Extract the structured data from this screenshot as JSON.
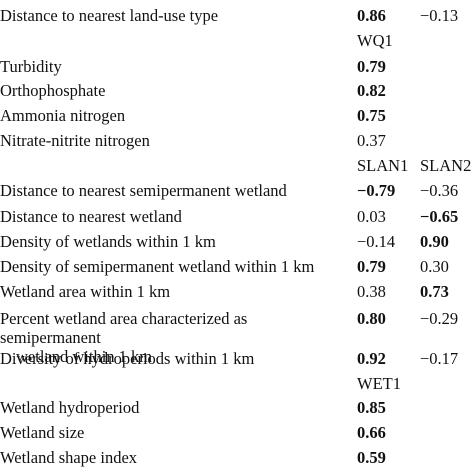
{
  "rows": [
    {
      "kind": "data",
      "label": "Distance to nearest land-use type",
      "v1": "0.86",
      "v1_bold": true,
      "v2": "−0.13",
      "v2_bold": false
    },
    {
      "kind": "header",
      "h1": "WQ1",
      "h2": ""
    },
    {
      "kind": "data",
      "label": "Turbidity",
      "v1": "0.79",
      "v1_bold": true,
      "v2": "",
      "v2_bold": false
    },
    {
      "kind": "data",
      "label": "Orthophosphate",
      "v1": "0.82",
      "v1_bold": true,
      "v2": "",
      "v2_bold": false
    },
    {
      "kind": "data",
      "label": "Ammonia nitrogen",
      "v1": "0.75",
      "v1_bold": true,
      "v2": "",
      "v2_bold": false
    },
    {
      "kind": "data",
      "label": "Nitrate-nitrite nitrogen",
      "v1": "0.37",
      "v1_bold": false,
      "v2": "",
      "v2_bold": false
    },
    {
      "kind": "header",
      "h1": "SLAN1",
      "h2": "SLAN2"
    },
    {
      "kind": "data",
      "label": "Distance to nearest semipermanent wetland",
      "v1": "−0.79",
      "v1_bold": true,
      "v2": "−0.36",
      "v2_bold": false
    },
    {
      "kind": "data",
      "label": "Distance to nearest wetland",
      "v1": "0.03",
      "v1_bold": false,
      "v2": "−0.65",
      "v2_bold": true
    },
    {
      "kind": "data",
      "label": "Density of wetlands within 1 km",
      "v1": "−0.14",
      "v1_bold": false,
      "v2": "0.90",
      "v2_bold": true
    },
    {
      "kind": "data",
      "label": "Density of semipermanent wetland within 1 km",
      "v1": "0.79",
      "v1_bold": true,
      "v2": "0.30",
      "v2_bold": false
    },
    {
      "kind": "data",
      "label": "Wetland area within 1 km",
      "v1": "0.38",
      "v1_bold": false,
      "v2": "0.73",
      "v2_bold": true
    },
    {
      "kind": "data2",
      "label": "Percent wetland area characterized as semipermanent",
      "label2": "wetland within 1 km",
      "v1": "0.80",
      "v1_bold": true,
      "v2": "−0.29",
      "v2_bold": false
    },
    {
      "kind": "data",
      "label": "Diversity of hydroperiods within 1 km",
      "v1": "0.92",
      "v1_bold": true,
      "v2": "−0.17",
      "v2_bold": false
    },
    {
      "kind": "header",
      "h1": "WET1",
      "h2": ""
    },
    {
      "kind": "data",
      "label": "Wetland hydroperiod",
      "v1": "0.85",
      "v1_bold": true,
      "v2": "",
      "v2_bold": false
    },
    {
      "kind": "data",
      "label": "Wetland size",
      "v1": "0.66",
      "v1_bold": true,
      "v2": "",
      "v2_bold": false
    },
    {
      "kind": "data",
      "label": "Wetland shape index",
      "v1": "0.59",
      "v1_bold": true,
      "v2": "",
      "v2_bold": false
    }
  ]
}
